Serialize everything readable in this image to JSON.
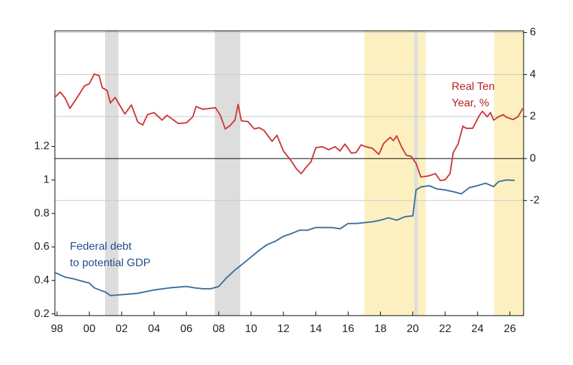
{
  "chart_data": {
    "type": "line",
    "xlim": [
      1997.87,
      2026.85
    ],
    "xticks": [
      {
        "value": 1998,
        "label": "98"
      },
      {
        "value": 2000,
        "label": "00"
      },
      {
        "value": 2002,
        "label": "02"
      },
      {
        "value": 2004,
        "label": "04"
      },
      {
        "value": 2006,
        "label": "06"
      },
      {
        "value": 2008,
        "label": "08"
      },
      {
        "value": 2010,
        "label": "10"
      },
      {
        "value": 2012,
        "label": "12"
      },
      {
        "value": 2014,
        "label": "14"
      },
      {
        "value": 2016,
        "label": "16"
      },
      {
        "value": 2018,
        "label": "18"
      },
      {
        "value": 2020,
        "label": "20"
      },
      {
        "value": 2022,
        "label": "22"
      },
      {
        "value": 2024,
        "label": "24"
      },
      {
        "value": 2026,
        "label": "26"
      }
    ],
    "ylim": [
      0.19,
      1.89
    ],
    "yticks": [
      0.2,
      0.4,
      0.6,
      0.8,
      1.0,
      1.2
    ],
    "y2lim": [
      -7.48,
      6.08
    ],
    "y2ticks": [
      -2,
      0,
      2,
      4,
      6
    ],
    "y2grid": true,
    "y2zero_line": true,
    "shading": [
      {
        "x": [
          2000.97,
          2001.8
        ],
        "color": "#dddddd"
      },
      {
        "x": [
          2007.76,
          2009.33
        ],
        "color": "#dddddd"
      },
      {
        "x": [
          2017.0,
          2020.8
        ],
        "color": "#fdf0c0"
      },
      {
        "x": [
          2020.1,
          2020.3
        ],
        "color": "#dddddd"
      },
      {
        "x": [
          2025.03,
          2026.85
        ],
        "color": "#fdf0c0"
      }
    ],
    "series": [
      {
        "color": "#3d6f9e",
        "axis": "y",
        "x": [
          1997.9,
          1998.5,
          1999,
          1999.5,
          2000,
          2000.3,
          2001,
          2001.3,
          2002,
          2003,
          2004,
          2005,
          2006,
          2006.5,
          2007,
          2007.5,
          2008,
          2008.5,
          2009,
          2009.5,
          2010,
          2010.5,
          2011,
          2011.5,
          2012,
          2012.5,
          2013,
          2013.5,
          2014,
          2015,
          2015.5,
          2016,
          2016.5,
          2017,
          2017.5,
          2018,
          2018.5,
          2019,
          2019.5,
          2020,
          2020.2,
          2020.5,
          2021,
          2021.5,
          2022,
          2022.5,
          2023,
          2023.5,
          2024,
          2024.5,
          2025,
          2025.3,
          2025.8,
          2026.3
        ],
        "values": [
          0.446,
          0.42,
          0.41,
          0.397,
          0.384,
          0.356,
          0.33,
          0.31,
          0.315,
          0.323,
          0.343,
          0.356,
          0.364,
          0.356,
          0.35,
          0.35,
          0.364,
          0.417,
          0.462,
          0.5,
          0.54,
          0.58,
          0.614,
          0.634,
          0.663,
          0.68,
          0.7,
          0.7,
          0.716,
          0.716,
          0.708,
          0.74,
          0.74,
          0.745,
          0.75,
          0.76,
          0.774,
          0.76,
          0.78,
          0.786,
          0.94,
          0.958,
          0.966,
          0.946,
          0.94,
          0.93,
          0.917,
          0.954,
          0.966,
          0.98,
          0.96,
          0.99,
          1.0,
          0.997
        ]
      },
      {
        "color": "#cc3a3a",
        "axis": "y2",
        "x": [
          1997.9,
          1998.2,
          1998.5,
          1998.8,
          1999.3,
          1999.7,
          2000,
          2000.3,
          2000.6,
          2000.8,
          2001.1,
          2001.3,
          2001.6,
          2002.2,
          2002.6,
          2003,
          2003.3,
          2003.6,
          2004,
          2004.5,
          2004.8,
          2005.5,
          2006,
          2006.4,
          2006.6,
          2007,
          2007.5,
          2007.8,
          2008.1,
          2008.4,
          2008.7,
          2009.0,
          2009.2,
          2009.4,
          2009.8,
          2010.2,
          2010.5,
          2010.8,
          2011.3,
          2011.6,
          2012,
          2012.5,
          2012.8,
          2013.1,
          2013.4,
          2013.7,
          2014,
          2014.4,
          2014.8,
          2015.2,
          2015.5,
          2015.8,
          2016.2,
          2016.5,
          2016.8,
          2017.1,
          2017.5,
          2017.9,
          2018.2,
          2018.6,
          2018.8,
          2019.0,
          2019.3,
          2019.6,
          2019.9,
          2020.2,
          2020.5,
          2021,
          2021.4,
          2021.7,
          2022,
          2022.3,
          2022.5,
          2022.8,
          2023.1,
          2023.3,
          2023.7,
          2024.1,
          2024.3,
          2024.6,
          2024.8,
          2025.0,
          2025.3,
          2025.6,
          2025.8,
          2026.2,
          2026.5,
          2026.8
        ],
        "values": [
          2.94,
          3.17,
          2.88,
          2.39,
          2.97,
          3.46,
          3.56,
          4.02,
          3.95,
          3.37,
          3.24,
          2.65,
          2.91,
          2.12,
          2.55,
          1.73,
          1.6,
          2.09,
          2.19,
          1.83,
          2.06,
          1.67,
          1.7,
          1.99,
          2.48,
          2.35,
          2.39,
          2.42,
          2.06,
          1.41,
          1.57,
          1.83,
          2.58,
          1.8,
          1.76,
          1.41,
          1.47,
          1.34,
          0.82,
          1.11,
          0.36,
          -0.13,
          -0.49,
          -0.72,
          -0.42,
          -0.16,
          0.52,
          0.56,
          0.42,
          0.56,
          0.36,
          0.69,
          0.26,
          0.29,
          0.65,
          0.56,
          0.49,
          0.2,
          0.72,
          1.01,
          0.85,
          1.08,
          0.56,
          0.16,
          0.1,
          -0.23,
          -0.88,
          -0.82,
          -0.72,
          -1.05,
          -1.01,
          -0.72,
          0.29,
          0.69,
          1.54,
          1.44,
          1.44,
          2.03,
          2.25,
          1.99,
          2.19,
          1.83,
          1.99,
          2.09,
          1.96,
          1.86,
          1.99,
          2.39
        ]
      }
    ],
    "annotations": [
      {
        "lines": [
          "Real Ten",
          "Year, %"
        ],
        "color": "#b22222",
        "x": 2022.4,
        "y2": 3.4
      },
      {
        "lines": [
          "Federal debt",
          "to potential GDP"
        ],
        "color": "#1f4e8c",
        "x": 1998.8,
        "y": 0.6
      }
    ]
  }
}
